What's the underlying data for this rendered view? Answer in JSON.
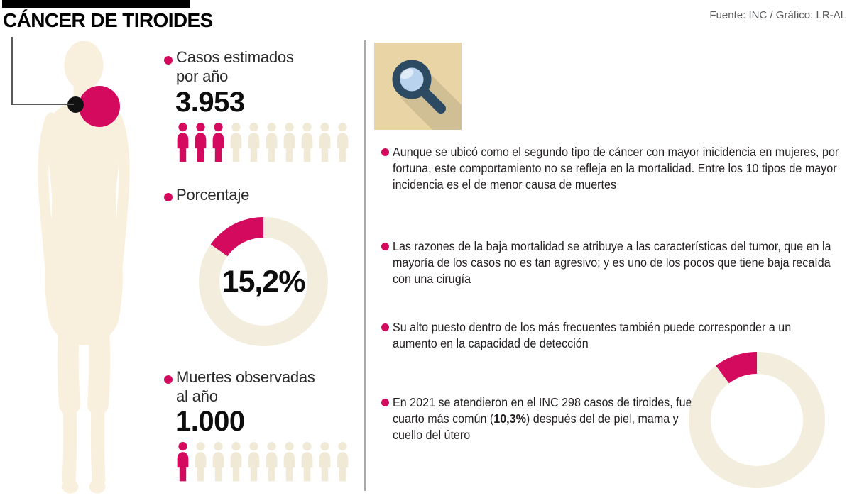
{
  "header": {
    "title": "CÁNCER DE TIROIDES",
    "source": "Fuente: INC / Gráfico: LR-AL"
  },
  "colors": {
    "accent": "#d40a5f",
    "beige_icon": "#f0e9d6",
    "donut_track": "#f3eddd",
    "silhouette": "#f9efdd",
    "tile": "#e8d4a5",
    "navy": "#2d4a63",
    "lens": "#b9d3ee",
    "divider": "#a7a9ac",
    "text_dark": "#231f20",
    "source_gray": "#58595b"
  },
  "stats": {
    "estimated": {
      "label_line1": "Casos estimados",
      "label_line2": "por año",
      "value": "3.953",
      "pictogram": {
        "total": 10,
        "highlighted": 3
      }
    },
    "percentage": {
      "label": "Porcentaje",
      "percent": 15.2,
      "value_label": "15,2%"
    },
    "deaths": {
      "label_line1": "Muertes observadas",
      "label_line2": "al año",
      "value": "1.000",
      "pictogram": {
        "total": 10,
        "highlighted": 1
      }
    }
  },
  "notes": [
    {
      "pre": "Aunque se ubicó como el segundo tipo de cáncer con mayor inicidencia en mujeres, por fortuna, este comportamiento no se refleja en la mortalidad. Entre los 10 tipos de mayor incidencia es el de menor causa de muertes",
      "bold": "",
      "post": ""
    },
    {
      "pre": "Las razones de la baja mortalidad se atribuye a las características del tumor, que en la mayoría de los casos no es tan agresivo; y es uno de los pocos que tiene baja recaída con una cirugía",
      "bold": "",
      "post": ""
    },
    {
      "pre": "Su alto puesto dentro de los más frecuentes también puede corresponder a un aumento en la capacidad de detección",
      "bold": "",
      "post": ""
    },
    {
      "pre": "En 2021 se atendieron en el INC 298 casos de tiroides, fue el cuarto más común (",
      "bold": "10,3%",
      "post": ") después del de piel, mama y cuello del útero"
    }
  ],
  "bottom_donut": {
    "percent": 10.3
  },
  "chart_data": [
    {
      "type": "pictogram",
      "title": "Casos estimados por año",
      "value": 3953,
      "icons_total": 10,
      "icons_highlighted": 3
    },
    {
      "type": "pie",
      "title": "Porcentaje",
      "donut": true,
      "center_label": "15,2%",
      "values": [
        15.2,
        84.8
      ],
      "colors": [
        "#d40a5f",
        "#f3eddd"
      ]
    },
    {
      "type": "pictogram",
      "title": "Muertes observadas al año",
      "value": 1000,
      "icons_total": 10,
      "icons_highlighted": 1
    },
    {
      "type": "pie",
      "title": "",
      "donut": true,
      "center_label": "",
      "values": [
        10.3,
        89.7
      ],
      "colors": [
        "#d40a5f",
        "#f3eddd"
      ]
    }
  ]
}
